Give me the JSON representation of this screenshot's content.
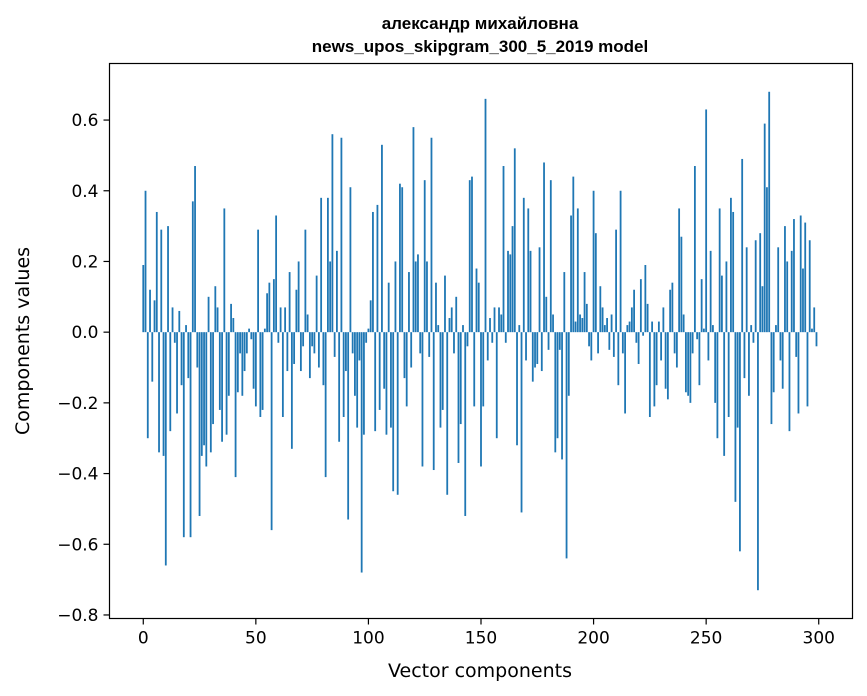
{
  "chart_data": {
    "type": "bar",
    "title": "александр михайловна",
    "subtitle": "news_upos_skipgram_300_5_2019 model",
    "xlabel": "Vector components",
    "ylabel": "Components values",
    "xlim": [
      -15,
      315
    ],
    "ylim": [
      -0.81,
      0.76
    ],
    "xticks": [
      0,
      50,
      100,
      150,
      200,
      250,
      300
    ],
    "yticks": [
      -0.8,
      -0.6,
      -0.4,
      -0.2,
      0.0,
      0.2,
      0.4,
      0.6
    ],
    "xtick_labels": [
      "0",
      "50",
      "100",
      "150",
      "200",
      "250",
      "300"
    ],
    "ytick_labels": [
      "−0.8",
      "−0.6",
      "−0.4",
      "−0.2",
      "0.0",
      "0.2",
      "0.4",
      "0.6"
    ],
    "grid": false,
    "legend": "none",
    "bar_color": "#1f77b4",
    "values": [
      0.19,
      0.4,
      -0.3,
      0.12,
      -0.14,
      0.09,
      0.34,
      -0.34,
      0.29,
      -0.35,
      -0.66,
      0.3,
      -0.28,
      0.07,
      -0.03,
      -0.23,
      0.06,
      -0.15,
      -0.58,
      0.02,
      -0.13,
      -0.58,
      0.37,
      0.47,
      -0.1,
      -0.52,
      -0.35,
      -0.32,
      -0.38,
      0.1,
      -0.34,
      -0.26,
      0.13,
      0.07,
      -0.22,
      -0.31,
      0.35,
      -0.29,
      -0.18,
      0.08,
      0.04,
      -0.41,
      -0.17,
      -0.06,
      -0.18,
      -0.11,
      -0.06,
      0.01,
      -0.02,
      -0.16,
      -0.21,
      0.29,
      -0.24,
      -0.22,
      0.01,
      0.11,
      0.14,
      -0.56,
      0.15,
      0.33,
      -0.03,
      0.07,
      -0.24,
      0.07,
      -0.11,
      0.17,
      -0.33,
      -0.09,
      0.12,
      0.2,
      -0.11,
      -0.04,
      0.29,
      0.05,
      -0.13,
      -0.04,
      -0.06,
      0.16,
      -0.1,
      0.38,
      -0.15,
      -0.41,
      0.38,
      0.2,
      0.56,
      -0.07,
      0.23,
      -0.31,
      0.55,
      -0.24,
      -0.11,
      -0.53,
      0.41,
      -0.06,
      -0.18,
      -0.27,
      -0.08,
      -0.68,
      -0.29,
      -0.03,
      0.01,
      0.09,
      0.34,
      -0.28,
      0.36,
      -0.22,
      0.53,
      -0.16,
      -0.29,
      0.14,
      -0.27,
      -0.45,
      0.2,
      -0.46,
      0.42,
      0.41,
      -0.13,
      -0.21,
      0.17,
      -0.1,
      0.58,
      0.2,
      0.22,
      -0.06,
      -0.38,
      0.43,
      0.2,
      -0.07,
      0.55,
      -0.39,
      0.14,
      0.02,
      -0.27,
      -0.22,
      0.16,
      -0.46,
      0.04,
      0.07,
      -0.06,
      0.1,
      -0.37,
      -0.26,
      0.02,
      -0.52,
      -0.04,
      0.43,
      0.44,
      -0.21,
      0.18,
      0.14,
      -0.38,
      -0.21,
      0.66,
      -0.08,
      0.04,
      -0.03,
      0.07,
      -0.3,
      0.07,
      0.05,
      0.47,
      -0.03,
      0.23,
      0.22,
      0.3,
      0.52,
      -0.32,
      0.02,
      -0.51,
      0.38,
      -0.08,
      0.35,
      0.23,
      -0.14,
      -0.1,
      -0.09,
      0.24,
      -0.11,
      0.48,
      0.1,
      -0.05,
      0.43,
      0.05,
      -0.34,
      -0.3,
      -0.05,
      -0.36,
      0.17,
      -0.64,
      -0.18,
      0.33,
      0.44,
      0.03,
      0.35,
      0.05,
      0.04,
      0.17,
      0.08,
      -0.04,
      -0.08,
      0.4,
      0.28,
      -0.06,
      0.13,
      0.07,
      0.02,
      0.04,
      -0.05,
      0.05,
      -0.07,
      0.29,
      -0.15,
      0.4,
      -0.06,
      -0.23,
      0.02,
      0.03,
      0.07,
      0.12,
      -0.03,
      -0.09,
      0.15,
      -0.01,
      0.19,
      0.08,
      -0.24,
      0.03,
      -0.21,
      -0.15,
      0.03,
      -0.08,
      0.07,
      -0.16,
      -0.19,
      0.12,
      0.14,
      -0.06,
      -0.1,
      0.35,
      0.27,
      0.05,
      -0.17,
      -0.18,
      -0.2,
      -0.06,
      0.47,
      -0.02,
      -0.15,
      0.15,
      0.01,
      0.63,
      -0.08,
      0.23,
      0.02,
      -0.2,
      -0.3,
      0.35,
      0.16,
      -0.35,
      0.2,
      -0.24,
      0.38,
      0.34,
      -0.48,
      -0.27,
      -0.62,
      0.49,
      -0.13,
      0.24,
      -0.18,
      0.02,
      -0.03,
      0.26,
      -0.73,
      0.28,
      0.13,
      0.59,
      0.41,
      0.68,
      -0.26,
      -0.17,
      0.02,
      0.24,
      -0.08,
      -0.16,
      0.3,
      0.2,
      -0.28,
      0.23,
      0.32,
      -0.07,
      -0.23,
      0.33,
      0.18,
      0.31,
      -0.21,
      0.26,
      0.01,
      0.07,
      -0.04
    ]
  }
}
